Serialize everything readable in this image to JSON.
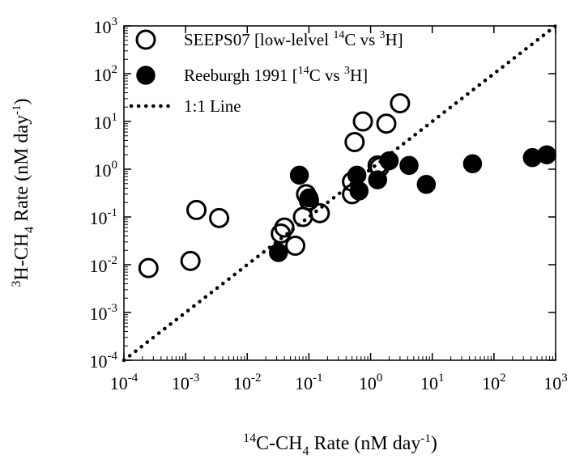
{
  "chart_data": {
    "type": "scatter",
    "xscale": "log",
    "yscale": "log",
    "xlim": [
      0.0001,
      1000
    ],
    "ylim": [
      0.0001,
      1000
    ],
    "grid": false,
    "legend_position": "top-left",
    "x_ticks": [
      {
        "value": 0.0001,
        "base": "10",
        "exp": "-4"
      },
      {
        "value": 0.001,
        "base": "10",
        "exp": "-3"
      },
      {
        "value": 0.01,
        "base": "10",
        "exp": "-2"
      },
      {
        "value": 0.1,
        "base": "10",
        "exp": "-1"
      },
      {
        "value": 1,
        "base": "10",
        "exp": "0"
      },
      {
        "value": 10,
        "base": "10",
        "exp": "1"
      },
      {
        "value": 100,
        "base": "10",
        "exp": "2"
      },
      {
        "value": 1000,
        "base": "10",
        "exp": "3"
      }
    ],
    "y_ticks": [
      {
        "value": 0.0001,
        "base": "10",
        "exp": "-4"
      },
      {
        "value": 0.001,
        "base": "10",
        "exp": "-3"
      },
      {
        "value": 0.01,
        "base": "10",
        "exp": "-2"
      },
      {
        "value": 0.1,
        "base": "10",
        "exp": "-1"
      },
      {
        "value": 1,
        "base": "10",
        "exp": "0"
      },
      {
        "value": 10,
        "base": "10",
        "exp": "1"
      },
      {
        "value": 100,
        "base": "10",
        "exp": "2"
      },
      {
        "value": 1000,
        "base": "10",
        "exp": "3"
      }
    ],
    "xlabel": {
      "sup1": "14",
      "main": "C-CH",
      "sub": "4",
      "rest": " Rate (nM day",
      "sup2": "-1",
      "end": ")"
    },
    "ylabel": {
      "sup1": "3",
      "main": "H-CH",
      "sub": "4",
      "rest": " Rate (nM day",
      "sup2": "-1",
      "end": ")"
    },
    "series": [
      {
        "name": "SEEPS07 [low-lelvel ¹⁴C vs ³H]",
        "legend": {
          "a": "SEEPS07 [low-lelvel ",
          "sup1": "14",
          "b": "C vs ",
          "sup2": "3",
          "c": "H]"
        },
        "marker": "open-circle",
        "points": [
          {
            "x": 0.00025,
            "y": 0.0085
          },
          {
            "x": 0.0012,
            "y": 0.012
          },
          {
            "x": 0.0015,
            "y": 0.14
          },
          {
            "x": 0.0035,
            "y": 0.095
          },
          {
            "x": 0.035,
            "y": 0.045
          },
          {
            "x": 0.04,
            "y": 0.06
          },
          {
            "x": 0.06,
            "y": 0.025
          },
          {
            "x": 0.08,
            "y": 0.1
          },
          {
            "x": 0.09,
            "y": 0.3
          },
          {
            "x": 0.1,
            "y": 0.22
          },
          {
            "x": 0.15,
            "y": 0.12
          },
          {
            "x": 0.5,
            "y": 0.3
          },
          {
            "x": 0.5,
            "y": 0.55
          },
          {
            "x": 0.55,
            "y": 3.7
          },
          {
            "x": 0.75,
            "y": 10
          },
          {
            "x": 1.3,
            "y": 1.2
          },
          {
            "x": 1.4,
            "y": 1.1
          },
          {
            "x": 1.8,
            "y": 9
          },
          {
            "x": 3.0,
            "y": 24
          }
        ]
      },
      {
        "name": "Reeburgh 1991 [¹⁴C vs ³H]",
        "legend": {
          "a": "Reeburgh 1991 [",
          "sup1": "14",
          "b": "C vs ",
          "sup2": "3",
          "c": "H]"
        },
        "marker": "filled-circle",
        "points": [
          {
            "x": 0.032,
            "y": 0.018
          },
          {
            "x": 0.07,
            "y": 0.75
          },
          {
            "x": 0.1,
            "y": 0.25
          },
          {
            "x": 0.6,
            "y": 0.75
          },
          {
            "x": 0.65,
            "y": 0.35
          },
          {
            "x": 1.3,
            "y": 0.6
          },
          {
            "x": 2.0,
            "y": 1.5
          },
          {
            "x": 4.2,
            "y": 1.2
          },
          {
            "x": 8.0,
            "y": 0.48
          },
          {
            "x": 45,
            "y": 1.3
          },
          {
            "x": 420,
            "y": 1.75
          },
          {
            "x": 720,
            "y": 2.0
          }
        ]
      },
      {
        "name": "1:1 Line",
        "legend": {
          "a": "1:1 Line"
        },
        "marker": "dotted-line",
        "line": [
          [
            0.0001,
            0.0001
          ],
          [
            1000,
            1000
          ]
        ]
      }
    ]
  },
  "colors": {
    "ink": "#000000",
    "background": "#ffffff"
  }
}
